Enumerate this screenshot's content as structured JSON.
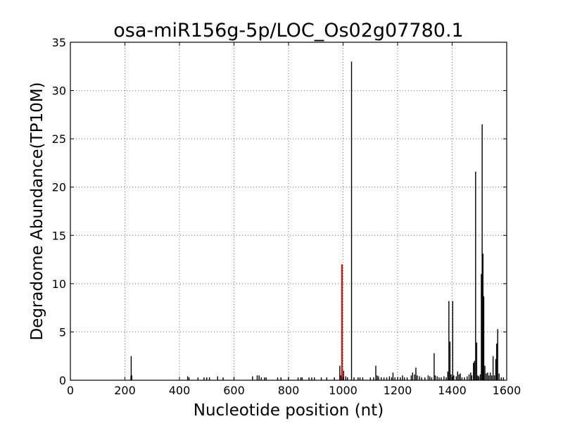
{
  "chart_data": {
    "type": "bar",
    "title": "osa-miR156g-5p/LOC_Os02g07780.1",
    "xlabel": "Nucleotide position (nt)",
    "ylabel": "Degradome Abundance(TP10M)",
    "xlim": [
      0,
      1600
    ],
    "ylim": [
      0,
      35
    ],
    "xticks": [
      0,
      200,
      400,
      600,
      800,
      1000,
      1200,
      1400,
      1600
    ],
    "yticks": [
      0,
      5,
      10,
      15,
      20,
      25,
      30,
      35
    ],
    "grid": true,
    "colors": {
      "default": "#000000",
      "highlight": "#ff0000"
    },
    "series": [
      {
        "values": [
          {
            "x": 222,
            "y": 0.4
          },
          {
            "x": 223,
            "y": 2.5
          },
          {
            "x": 225,
            "y": 0.5
          },
          {
            "x": 430,
            "y": 0.4
          },
          {
            "x": 435,
            "y": 0.3
          },
          {
            "x": 468,
            "y": 0.3
          },
          {
            "x": 490,
            "y": 0.3
          },
          {
            "x": 500,
            "y": 0.3
          },
          {
            "x": 510,
            "y": 0.3
          },
          {
            "x": 540,
            "y": 0.4
          },
          {
            "x": 560,
            "y": 0.3
          },
          {
            "x": 600,
            "y": 0.3
          },
          {
            "x": 668,
            "y": 0.4
          },
          {
            "x": 685,
            "y": 0.5
          },
          {
            "x": 692,
            "y": 0.5
          },
          {
            "x": 700,
            "y": 0.3
          },
          {
            "x": 712,
            "y": 0.3
          },
          {
            "x": 718,
            "y": 0.3
          },
          {
            "x": 760,
            "y": 0.3
          },
          {
            "x": 772,
            "y": 0.3
          },
          {
            "x": 800,
            "y": 0.3
          },
          {
            "x": 835,
            "y": 0.3
          },
          {
            "x": 845,
            "y": 0.3
          },
          {
            "x": 850,
            "y": 0.3
          },
          {
            "x": 875,
            "y": 0.3
          },
          {
            "x": 885,
            "y": 0.3
          },
          {
            "x": 895,
            "y": 0.3
          },
          {
            "x": 920,
            "y": 0.3
          },
          {
            "x": 940,
            "y": 0.3
          },
          {
            "x": 968,
            "y": 0.3
          },
          {
            "x": 988,
            "y": 1.5
          },
          {
            "x": 992,
            "y": 0.5
          },
          {
            "x": 1002,
            "y": 1.0
          },
          {
            "x": 1010,
            "y": 0.4
          },
          {
            "x": 1016,
            "y": 0.3
          },
          {
            "x": 1031,
            "y": 33.0
          },
          {
            "x": 1040,
            "y": 0.3
          },
          {
            "x": 1055,
            "y": 0.3
          },
          {
            "x": 1062,
            "y": 0.3
          },
          {
            "x": 1072,
            "y": 0.3
          },
          {
            "x": 1100,
            "y": 0.3
          },
          {
            "x": 1112,
            "y": 0.3
          },
          {
            "x": 1120,
            "y": 1.5
          },
          {
            "x": 1125,
            "y": 0.5
          },
          {
            "x": 1130,
            "y": 0.4
          },
          {
            "x": 1140,
            "y": 0.3
          },
          {
            "x": 1150,
            "y": 0.3
          },
          {
            "x": 1160,
            "y": 0.3
          },
          {
            "x": 1170,
            "y": 0.4
          },
          {
            "x": 1178,
            "y": 0.3
          },
          {
            "x": 1183,
            "y": 0.8
          },
          {
            "x": 1190,
            "y": 0.3
          },
          {
            "x": 1200,
            "y": 0.3
          },
          {
            "x": 1210,
            "y": 0.3
          },
          {
            "x": 1218,
            "y": 0.5
          },
          {
            "x": 1225,
            "y": 0.3
          },
          {
            "x": 1235,
            "y": 0.3
          },
          {
            "x": 1250,
            "y": 0.5
          },
          {
            "x": 1255,
            "y": 0.8
          },
          {
            "x": 1262,
            "y": 0.6
          },
          {
            "x": 1267,
            "y": 1.3
          },
          {
            "x": 1272,
            "y": 0.5
          },
          {
            "x": 1280,
            "y": 0.4
          },
          {
            "x": 1288,
            "y": 0.3
          },
          {
            "x": 1300,
            "y": 0.3
          },
          {
            "x": 1312,
            "y": 0.5
          },
          {
            "x": 1318,
            "y": 0.4
          },
          {
            "x": 1325,
            "y": 0.3
          },
          {
            "x": 1334,
            "y": 2.8
          },
          {
            "x": 1338,
            "y": 0.5
          },
          {
            "x": 1345,
            "y": 0.4
          },
          {
            "x": 1352,
            "y": 0.3
          },
          {
            "x": 1360,
            "y": 0.3
          },
          {
            "x": 1370,
            "y": 0.4
          },
          {
            "x": 1378,
            "y": 0.3
          },
          {
            "x": 1384,
            "y": 0.9
          },
          {
            "x": 1388,
            "y": 8.2
          },
          {
            "x": 1392,
            "y": 4.0
          },
          {
            "x": 1396,
            "y": 0.6
          },
          {
            "x": 1402,
            "y": 8.2
          },
          {
            "x": 1406,
            "y": 0.5
          },
          {
            "x": 1415,
            "y": 0.4
          },
          {
            "x": 1420,
            "y": 0.9
          },
          {
            "x": 1425,
            "y": 0.6
          },
          {
            "x": 1430,
            "y": 0.7
          },
          {
            "x": 1436,
            "y": 0.3
          },
          {
            "x": 1445,
            "y": 0.3
          },
          {
            "x": 1455,
            "y": 0.4
          },
          {
            "x": 1462,
            "y": 0.6
          },
          {
            "x": 1468,
            "y": 0.8
          },
          {
            "x": 1472,
            "y": 0.5
          },
          {
            "x": 1478,
            "y": 1.8
          },
          {
            "x": 1482,
            "y": 2.0
          },
          {
            "x": 1486,
            "y": 21.6
          },
          {
            "x": 1490,
            "y": 3.9
          },
          {
            "x": 1494,
            "y": 0.5
          },
          {
            "x": 1498,
            "y": 0.4
          },
          {
            "x": 1503,
            "y": 0.6
          },
          {
            "x": 1507,
            "y": 11.0
          },
          {
            "x": 1510,
            "y": 26.5
          },
          {
            "x": 1513,
            "y": 13.1
          },
          {
            "x": 1516,
            "y": 8.7
          },
          {
            "x": 1520,
            "y": 1.5
          },
          {
            "x": 1525,
            "y": 0.7
          },
          {
            "x": 1530,
            "y": 0.8
          },
          {
            "x": 1535,
            "y": 0.5
          },
          {
            "x": 1540,
            "y": 0.8
          },
          {
            "x": 1545,
            "y": 0.5
          },
          {
            "x": 1550,
            "y": 2.5
          },
          {
            "x": 1555,
            "y": 0.5
          },
          {
            "x": 1560,
            "y": 2.2
          },
          {
            "x": 1563,
            "y": 3.8
          },
          {
            "x": 1567,
            "y": 5.3
          },
          {
            "x": 1572,
            "y": 0.7
          },
          {
            "x": 1580,
            "y": 0.3
          },
          {
            "x": 1588,
            "y": 0.3
          }
        ]
      },
      {
        "highlight": true,
        "values": [
          {
            "x": 996,
            "y": 12.0
          }
        ]
      }
    ]
  }
}
